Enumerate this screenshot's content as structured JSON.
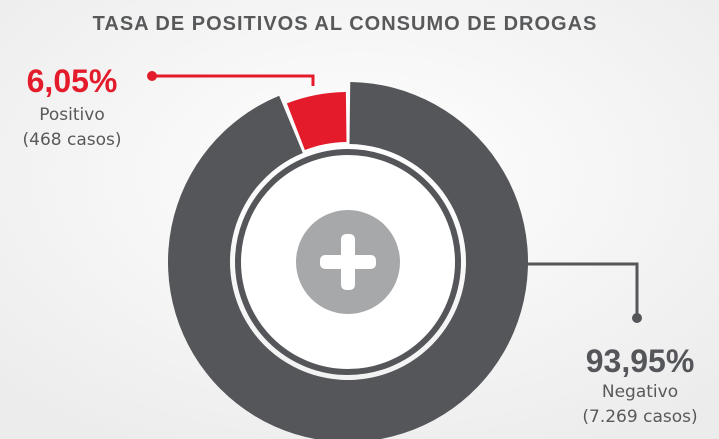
{
  "chart_data": {
    "type": "pie",
    "title": "TASA DE POSITIVOS AL CONSUMO DE DROGAS",
    "categories": [
      "Positivo",
      "Negativo"
    ],
    "values": [
      6.05,
      93.95
    ],
    "value_labels": [
      "6,05%",
      "93,95%"
    ],
    "count_labels": [
      "(468 casos)",
      "(7.269 casos)"
    ],
    "colors": [
      "#e31b2b",
      "#545659"
    ]
  }
}
